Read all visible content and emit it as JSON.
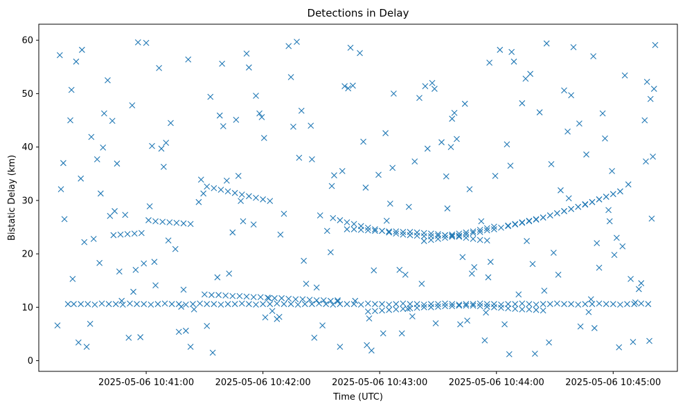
{
  "chart_data": {
    "type": "scatter",
    "title": "Detections in Delay",
    "xlabel": "Time (UTC)",
    "ylabel": "Bistatic Delay (km)",
    "marker": "x",
    "color": "#1f77b4",
    "grid": false,
    "x_unit": "minutes since 2025-05-06 10:40:00",
    "xlim": [
      0.08,
      5.55
    ],
    "ylim": [
      -2,
      63
    ],
    "x_ticks": [
      {
        "value": 1,
        "label": "2025-05-06 10:41:00"
      },
      {
        "value": 2,
        "label": "2025-05-06 10:42:00"
      },
      {
        "value": 3,
        "label": "2025-05-06 10:43:00"
      },
      {
        "value": 4,
        "label": "2025-05-06 10:44:00"
      },
      {
        "value": 5,
        "label": "2025-05-06 10:45:00"
      }
    ],
    "y_ticks": [
      {
        "value": 0,
        "label": "0"
      },
      {
        "value": 10,
        "label": "10"
      },
      {
        "value": 20,
        "label": "20"
      },
      {
        "value": 30,
        "label": "30"
      },
      {
        "value": 40,
        "label": "40"
      },
      {
        "value": 50,
        "label": "50"
      },
      {
        "value": 60,
        "label": "60"
      }
    ],
    "series": [
      {
        "name": "Detections",
        "x": [
          0.33,
          0.38,
          0.44,
          0.5,
          0.56,
          0.62,
          0.68,
          0.74,
          0.8,
          0.86,
          0.92,
          0.98,
          1.04,
          1.1,
          1.16,
          1.22,
          1.28,
          1.34,
          1.4,
          1.46,
          1.52,
          1.58,
          1.64,
          1.7,
          1.76,
          1.82,
          1.88,
          1.94,
          2.0,
          2.06,
          2.12,
          2.18,
          2.24,
          2.3,
          2.36,
          2.42,
          2.48,
          2.54,
          2.6,
          2.66,
          2.72,
          2.78,
          2.84,
          2.9,
          2.96,
          3.02,
          3.08,
          3.14,
          3.2,
          3.26,
          3.32,
          3.38,
          3.44,
          3.5,
          3.56,
          3.62,
          3.68,
          3.74,
          3.8,
          3.86,
          3.92,
          3.98,
          4.04,
          4.1,
          4.16,
          4.22,
          4.28,
          4.34,
          4.4,
          4.46,
          4.52,
          4.58,
          4.64,
          4.7,
          4.76,
          4.82,
          4.88,
          4.94,
          5.0,
          5.06,
          5.12,
          5.18,
          5.24,
          5.3,
          1.5,
          1.56,
          1.62,
          1.68,
          1.74,
          1.8,
          1.86,
          1.92,
          1.98,
          2.04,
          2.1,
          2.16,
          2.22,
          2.28,
          2.34,
          2.4,
          2.46,
          2.52,
          2.58,
          2.64,
          2.9,
          2.96,
          3.02,
          3.08,
          3.14,
          3.2,
          3.26,
          3.32,
          3.38,
          3.44,
          3.5,
          3.56,
          3.62,
          3.68,
          3.74,
          3.8,
          3.86,
          3.92,
          3.98,
          4.04,
          4.1,
          4.16,
          4.22,
          4.28,
          4.34,
          4.4,
          0.72,
          0.78,
          0.84,
          0.9,
          0.96,
          1.02,
          1.08,
          1.14,
          1.2,
          1.26,
          1.32,
          1.38,
          2.72,
          2.78,
          2.84,
          2.9,
          2.96,
          3.02,
          3.08,
          3.14,
          3.2,
          3.26,
          3.32,
          3.38,
          3.44,
          3.5,
          3.56,
          3.62,
          3.68,
          3.74,
          3.8,
          3.86,
          3.92,
          3.38,
          3.44,
          3.5,
          3.56,
          3.62,
          3.68,
          3.74,
          3.8,
          3.86,
          3.92,
          3.98,
          4.04,
          4.1,
          4.16,
          4.22,
          4.28,
          4.34,
          4.4,
          4.46,
          4.52,
          4.58,
          4.64,
          4.7,
          4.76,
          4.82,
          4.88,
          4.94,
          5.0,
          5.06,
          1.52,
          1.58,
          1.64,
          1.7,
          1.76,
          1.82,
          1.88,
          1.94,
          2.0,
          2.06,
          2.6,
          2.66,
          2.72,
          2.78,
          2.84,
          2.9,
          2.96,
          3.02,
          3.08,
          3.14,
          3.2,
          3.26,
          3.32,
          3.38,
          3.44,
          3.5,
          3.56,
          3.62,
          3.68,
          3.74,
          3.8,
          3.86,
          3.92,
          3.98,
          4.1,
          4.16,
          4.22,
          4.28,
          4.34,
          4.4,
          4.46,
          4.52,
          4.58,
          4.64,
          4.7,
          4.76,
          4.82,
          4.88,
          4.94,
          5.0,
          5.06,
          0.26,
          0.55,
          0.71,
          1.13,
          1.94,
          2.22,
          2.41,
          2.88,
          3.11,
          3.66,
          3.94,
          4.22,
          4.83,
          5.1,
          5.27,
          0.44,
          0.91,
          1.32,
          1.74,
          2.35,
          2.68,
          3.25,
          3.71,
          4.12,
          4.53,
          4.96,
          5.33,
          0.24,
          0.37,
          0.47,
          0.61,
          0.73,
          0.95,
          1.08,
          1.25,
          1.41,
          1.57,
          1.69,
          1.88,
          2.02,
          2.15,
          2.33,
          2.51,
          2.64,
          2.77,
          2.93,
          3.06,
          3.19,
          3.36,
          3.48,
          3.61,
          3.79,
          3.9,
          4.07,
          4.25,
          4.41,
          4.58,
          4.72,
          4.88,
          5.03,
          5.19,
          5.31,
          5.36,
          0.3,
          0.42,
          0.58,
          0.67,
          0.82,
          0.98,
          1.11,
          1.28,
          1.45,
          1.63,
          1.79,
          1.97,
          2.12,
          2.29,
          2.46,
          2.61,
          2.79,
          2.95,
          3.12,
          3.3,
          3.45,
          3.62,
          3.77,
          3.95,
          4.11,
          4.29,
          4.45,
          4.61,
          4.79,
          4.93,
          5.08,
          5.24,
          5.35,
          0.29,
          0.4,
          0.52,
          0.64,
          0.77,
          0.88,
          1.03,
          1.17,
          1.36,
          1.52,
          1.66,
          1.83,
          2.01,
          2.18,
          2.37,
          2.55,
          2.7,
          2.86,
          3.03,
          3.22,
          3.39,
          3.57,
          3.73,
          3.91,
          4.09,
          4.26,
          4.43,
          4.62,
          4.77,
          4.91,
          5.05,
          5.22,
          5.32,
          0.35,
          0.49,
          0.63,
          0.79,
          0.93,
          1.07,
          1.21,
          1.38,
          1.55,
          1.71,
          1.86,
          2.05,
          2.24,
          2.42,
          2.58,
          2.75,
          2.91,
          3.09,
          3.28,
          3.47,
          3.64,
          3.81,
          3.99,
          4.15,
          4.33,
          4.49,
          4.66,
          4.84,
          4.99,
          5.15,
          5.29,
          0.27,
          0.45,
          0.6,
          0.75,
          0.89,
          1.05,
          1.19,
          1.34,
          1.49,
          1.65,
          1.81,
          1.99,
          2.14,
          2.31,
          2.49,
          2.66,
          2.83,
          2.99,
          3.17,
          3.34,
          3.53,
          3.69,
          3.87,
          4.03,
          4.19,
          4.37,
          4.55,
          4.71,
          4.86,
          5.01,
          5.17,
          5.34,
          0.36,
          0.53,
          0.69,
          0.85,
          1.0,
          1.15,
          1.3,
          1.47,
          1.61,
          1.77,
          1.92,
          2.08,
          2.26,
          2.44,
          2.59,
          2.73,
          2.89,
          3.05,
          3.24,
          3.41,
          3.58,
          3.75,
          3.93,
          4.13,
          4.31,
          4.47,
          4.64,
          4.81,
          4.97,
          5.13,
          5.28
        ],
        "y": [
          10.6,
          10.6,
          10.6,
          10.6,
          10.5,
          10.7,
          10.6,
          10.6,
          10.5,
          10.7,
          10.6,
          10.6,
          10.5,
          10.6,
          10.7,
          10.6,
          10.6,
          10.5,
          10.6,
          10.7,
          10.6,
          10.6,
          10.5,
          10.6,
          10.6,
          10.7,
          10.6,
          10.5,
          10.6,
          10.6,
          10.7,
          10.6,
          10.6,
          10.5,
          10.6,
          10.6,
          10.7,
          10.6,
          10.5,
          10.6,
          10.6,
          10.6,
          10.5,
          10.7,
          10.6,
          10.6,
          10.5,
          10.6,
          10.7,
          10.6,
          10.6,
          10.5,
          10.6,
          10.6,
          10.7,
          10.6,
          10.5,
          10.6,
          10.6,
          10.7,
          10.6,
          10.6,
          10.5,
          10.6,
          10.6,
          10.7,
          10.6,
          10.5,
          10.6,
          10.6,
          10.7,
          10.6,
          10.6,
          10.5,
          10.6,
          10.6,
          10.7,
          10.6,
          10.6,
          10.5,
          10.6,
          10.6,
          10.7,
          10.6,
          12.4,
          12.3,
          12.3,
          12.2,
          12.1,
          12.1,
          12.0,
          11.9,
          11.9,
          11.8,
          11.7,
          11.7,
          11.6,
          11.5,
          11.5,
          11.4,
          11.3,
          11.3,
          11.2,
          11.1,
          9.2,
          9.3,
          9.4,
          9.5,
          9.6,
          9.7,
          9.8,
          9.9,
          10.0,
          10.0,
          10.1,
          10.2,
          10.2,
          10.3,
          10.3,
          10.3,
          10.2,
          10.1,
          10.0,
          9.9,
          9.8,
          9.7,
          9.6,
          9.6,
          9.5,
          9.4,
          23.5,
          23.6,
          23.7,
          23.8,
          23.9,
          26.3,
          26.1,
          26.0,
          25.9,
          25.8,
          25.7,
          25.6,
          24.6,
          24.6,
          24.5,
          24.4,
          24.3,
          24.3,
          24.2,
          24.2,
          24.1,
          24.1,
          24.0,
          23.9,
          23.8,
          23.7,
          23.5,
          23.4,
          23.2,
          23.0,
          22.8,
          22.6,
          22.5,
          22.4,
          22.6,
          22.8,
          23.0,
          23.2,
          23.4,
          23.6,
          23.9,
          24.1,
          24.4,
          24.6,
          24.9,
          25.2,
          25.5,
          25.8,
          26.1,
          26.4,
          26.8,
          27.2,
          27.6,
          28.0,
          28.4,
          28.8,
          29.3,
          29.7,
          30.2,
          30.7,
          31.2,
          31.7,
          32.6,
          32.3,
          32.0,
          31.7,
          31.4,
          31.1,
          30.8,
          30.5,
          30.2,
          29.9,
          26.7,
          26.3,
          25.9,
          25.6,
          25.2,
          24.9,
          24.6,
          24.3,
          24.0,
          23.8,
          23.6,
          23.5,
          23.4,
          23.3,
          23.3,
          23.4,
          23.5,
          23.6,
          23.8,
          24.0,
          24.2,
          24.5,
          24.8,
          25.1,
          25.3,
          25.6,
          25.9,
          26.2,
          26.5,
          26.8,
          27.2,
          27.6,
          28.0,
          28.4,
          28.8,
          29.2,
          29.7,
          30.2,
          30.7,
          31.2,
          31.7,
          57.2,
          22.8,
          44.9,
          39.7,
          49.6,
          58.9,
          44.0,
          32.4,
          36.1,
          41.5,
          55.8,
          48.2,
          57.0,
          53.4,
          45.0,
          34.1,
          17.0,
          13.3,
          24.0,
          18.7,
          35.5,
          28.8,
          19.4,
          36.5,
          16.1,
          28.2,
          26.6,
          6.6,
          15.3,
          22.2,
          31.3,
          28.0,
          4.4,
          14.1,
          20.9,
          9.6,
          1.5,
          33.7,
          54.9,
          8.1,
          23.6,
          46.8,
          6.6,
          11.3,
          51.5,
          1.9,
          26.2,
          5.1,
          14.4,
          7.0,
          40.0,
          16.3,
          3.8,
          6.8,
          52.8,
          13.1,
          50.6,
          6.4,
          17.4,
          23.0,
          10.9,
          3.7,
          59.1,
          26.5,
          3.4,
          37.7,
          52.5,
          27.3,
          18.2,
          54.8,
          5.4,
          29.7,
          45.9,
          34.6,
          46.3,
          7.8,
          59.7,
          13.7,
          34.7,
          11.2,
          16.9,
          50.0,
          37.3,
          52.0,
          45.3,
          32.1,
          18.5,
          1.2,
          53.7,
          3.4,
          42.9,
          9.1,
          41.6,
          21.4,
          14.5,
          50.9,
          37.0,
          56.0,
          6.9,
          46.3,
          16.7,
          47.8,
          28.9,
          40.8,
          56.4,
          6.5,
          43.9,
          26.1,
          41.7,
          27.5,
          14.4,
          24.3,
          51.4,
          41.0,
          5.1,
          16.1,
          51.4,
          34.5,
          48.1,
          9.0,
          40.5,
          22.4,
          59.4,
          30.4,
          38.6,
          46.3,
          2.5,
          13.4,
          49.0,
          45.0,
          2.6,
          39.9,
          11.2,
          59.6,
          18.5,
          44.5,
          2.6,
          49.4,
          16.3,
          57.5,
          11.7,
          53.1,
          37.7,
          20.3,
          58.6,
          7.9,
          29.4,
          8.3,
          50.9,
          46.4,
          17.5,
          34.6,
          56.0,
          1.3,
          20.2,
          58.7,
          6.1,
          35.5,
          15.3,
          52.2,
          32.1,
          58.2,
          18.3,
          36.9,
          12.9,
          40.2,
          22.5,
          5.6,
          31.3,
          55.6,
          29.9,
          45.6,
          8.2,
          38.0,
          27.2,
          2.6,
          57.6,
          34.8,
          17.0,
          49.2,
          40.9,
          6.8,
          26.1,
          58.2,
          12.4,
          46.5,
          31.9,
          44.4,
          22.0,
          19.8,
          3.5,
          38.2,
          50.7,
          41.9,
          27.1,
          4.3,
          59.5,
          36.3,
          10.1,
          33.9,
          15.6,
          45.1,
          25.5,
          9.3,
          43.8,
          4.3,
          32.7,
          51.0,
          2.9,
          42.6,
          9.7,
          39.7,
          28.5,
          7.5,
          15.6,
          57.8,
          18.1,
          36.8,
          49.7,
          11.5,
          26.1,
          33.0,
          37.3
        ]
      }
    ]
  }
}
